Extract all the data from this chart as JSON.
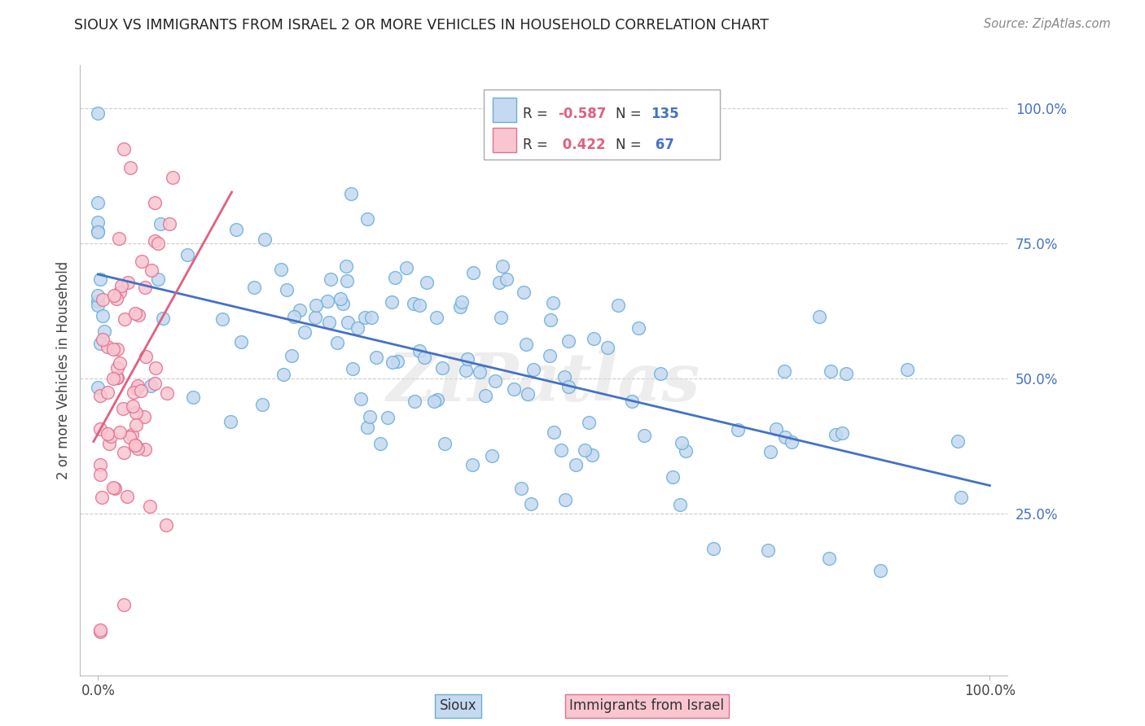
{
  "title": "SIOUX VS IMMIGRANTS FROM ISRAEL 2 OR MORE VEHICLES IN HOUSEHOLD CORRELATION CHART",
  "source": "Source: ZipAtlas.com",
  "ylabel": "2 or more Vehicles in Household",
  "xlabel_sioux": "Sioux",
  "xlabel_israel": "Immigrants from Israel",
  "xlim": [
    -0.02,
    1.02
  ],
  "ylim": [
    -0.05,
    1.08
  ],
  "sioux_r": -0.587,
  "sioux_n": 135,
  "israel_r": 0.422,
  "israel_n": 67,
  "blue_color": "#c5d9f1",
  "blue_edge": "#6aaed6",
  "pink_color": "#f9c6d0",
  "pink_edge": "#e07090",
  "blue_line_color": "#4472c4",
  "pink_line_color": "#e06080",
  "legend_r_color_blue": "#e06080",
  "legend_n_color": "#4472c4",
  "watermark": "ZIPatlas",
  "ytick_color": "#4472c4",
  "xtick_labels": [
    "0.0%",
    "100.0%"
  ],
  "ytick_labels": [
    "25.0%",
    "50.0%",
    "75.0%",
    "100.0%"
  ],
  "ytick_positions": [
    0.25,
    0.5,
    0.75,
    1.0
  ]
}
